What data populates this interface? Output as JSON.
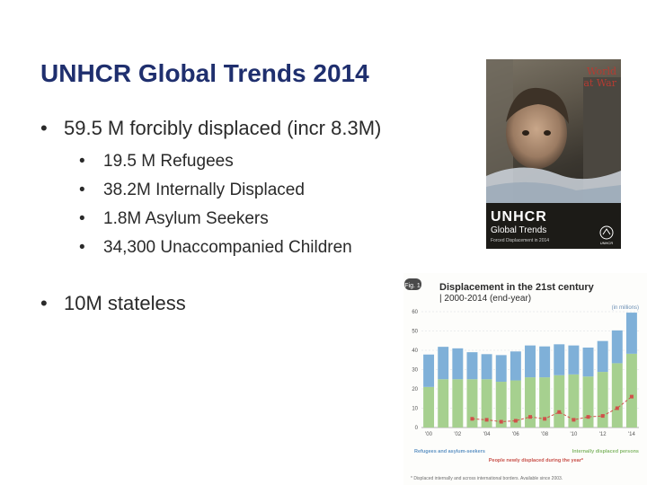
{
  "slide": {
    "title": "UNHCR Global Trends 2014",
    "bullets": [
      {
        "text": "59.5 M forcibly displaced (incr 8.3M)"
      },
      {
        "text": "10M stateless"
      }
    ],
    "sub_bullets": [
      "19.5 M Refugees",
      "38.2M Internally Displaced",
      "1.8M Asylum Seekers",
      "34,300 Unaccompanied Children"
    ],
    "bullet_glyph": "•"
  },
  "cover": {
    "headline_1": "World",
    "headline_2": "at War",
    "brand": "UNHCR",
    "subtitle": "Global Trends",
    "tagline": "Forced Displacement in 2014",
    "logo_text": "UNHCR"
  },
  "colors": {
    "title": "#1f2f6e",
    "refugees": "#7fb0d8",
    "idps": "#a6d08f",
    "new_displaced": "#d0504a"
  },
  "chart_data": {
    "type": "bar",
    "figure_label": "Fig. 1",
    "title": "Displacement in the 21st century",
    "subtitle": "| 2000-2014 (end-year)",
    "unit_label": "(in millions)",
    "ylim": [
      0,
      60
    ],
    "yticks": [
      "0",
      "10",
      "20",
      "30",
      "40",
      "50",
      "60"
    ],
    "x": [
      2000,
      2001,
      2002,
      2003,
      2004,
      2005,
      2006,
      2007,
      2008,
      2009,
      2010,
      2011,
      2012,
      2013,
      2014
    ],
    "xticks": [
      "'00",
      "'02",
      "'04",
      "'06",
      "'08",
      "'10",
      "'12",
      "'14"
    ],
    "series": [
      {
        "name": "Internally displaced persons",
        "kind": "stacked-bar-base",
        "values": [
          21.0,
          25.0,
          25.0,
          25.0,
          25.0,
          23.7,
          24.4,
          26.0,
          26.0,
          27.1,
          27.5,
          26.4,
          28.8,
          33.3,
          38.2
        ]
      },
      {
        "name": "Refugees and asylum-seekers",
        "kind": "stacked-bar-top",
        "values": [
          16.8,
          16.8,
          16.0,
          14.0,
          13.0,
          13.8,
          15.0,
          16.5,
          16.0,
          16.0,
          15.0,
          15.0,
          16.0,
          17.0,
          21.3
        ]
      },
      {
        "name": "People newly displaced during the year*",
        "kind": "line",
        "x": [
          2003,
          2004,
          2005,
          2006,
          2007,
          2008,
          2009,
          2010,
          2011,
          2012,
          2013,
          2014
        ],
        "values": [
          4.5,
          4.0,
          3.0,
          3.5,
          5.5,
          4.5,
          8.0,
          4.0,
          5.5,
          6.0,
          10.0,
          16.0
        ]
      }
    ],
    "legend": {
      "refugees": "Refugees and asylum-seekers",
      "idps": "Internally displaced persons",
      "new": "People newly displaced during the year*"
    },
    "footnote": "* Displaced internally and across international borders. Available since 2003."
  }
}
